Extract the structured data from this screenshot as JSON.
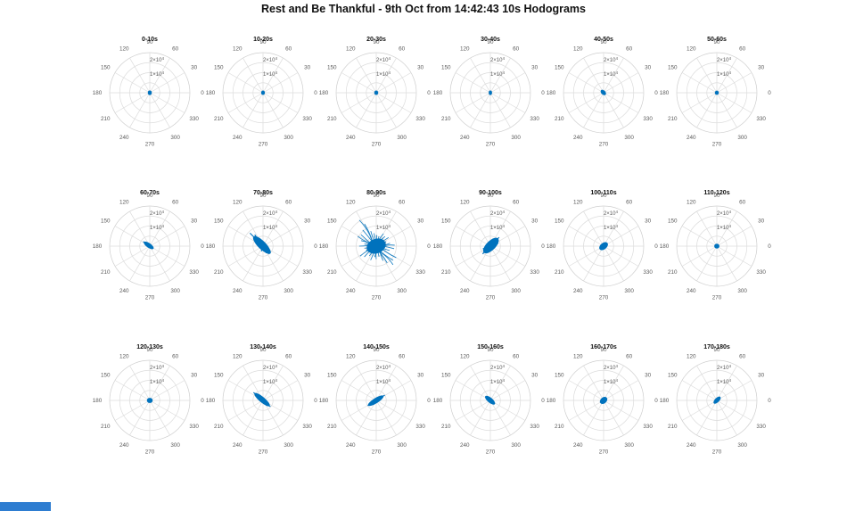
{
  "figure": {
    "title": "Rest and Be Thankful - 9th Oct from 14:42:43 10s Hodograms"
  },
  "colors": {
    "data": "#0072BD",
    "grid": "#dcdcdc",
    "grid_outer": "#cfcfcf",
    "tick": "#5a5a5a",
    "title": "#111111",
    "corner_bar": "#2e7dd1"
  },
  "chart_data": {
    "type": "line",
    "subtype": "polar-hodogram-grid",
    "title": "Rest and Be Thankful - 9th Oct from 14:42:43 10s Hodograms",
    "rows": 3,
    "cols": 6,
    "grid": true,
    "angle_ticks": [
      "0",
      "30",
      "60",
      "90",
      "120",
      "150",
      "180",
      "210",
      "240",
      "270",
      "300",
      "330"
    ],
    "r_tick_labels": [
      "1×10^4",
      "2×10^4"
    ],
    "r_max": 20000,
    "grid_rings": [
      5000,
      10000,
      15000,
      20000
    ],
    "subplots": [
      {
        "label": "0-10s",
        "blob": {
          "kind": "dot",
          "orient": 90,
          "len": 0.115,
          "wid": 0.1
        }
      },
      {
        "label": "10-20s",
        "blob": {
          "kind": "dot",
          "orient": 90,
          "len": 0.11,
          "wid": 0.095
        }
      },
      {
        "label": "20-30s",
        "blob": {
          "kind": "dot",
          "orient": 90,
          "len": 0.11,
          "wid": 0.1
        }
      },
      {
        "label": "30-40s",
        "blob": {
          "kind": "dot",
          "orient": 90,
          "len": 0.115,
          "wid": 0.085
        }
      },
      {
        "label": "40-50s",
        "blob": {
          "kind": "lobe",
          "orient": 135,
          "len": 0.16,
          "wid": 0.105,
          "offset": 0.02
        }
      },
      {
        "label": "50-60s",
        "blob": {
          "kind": "dot",
          "orient": 90,
          "len": 0.105,
          "wid": 0.1
        }
      },
      {
        "label": "60-70s",
        "blob": {
          "kind": "lobe",
          "orient": 145,
          "len": 0.29,
          "wid": 0.115,
          "offset": 0.065,
          "spikes": [
            [
              145,
              0.4
            ],
            [
              322,
              0.2
            ]
          ]
        }
      },
      {
        "label": "70-80s",
        "blob": {
          "kind": "lobe",
          "orient": 135,
          "len": 0.58,
          "wid": 0.2,
          "offset": 0.09,
          "extra": [
            {
              "orient": 315,
              "len": 0.34,
              "wid": 0.15,
              "offset": 0.18
            }
          ],
          "spikes": [
            [
              135,
              0.92
            ],
            [
              126,
              0.7
            ],
            [
              310,
              0.5
            ],
            [
              295,
              0.38
            ],
            [
              252,
              0.27
            ]
          ]
        }
      },
      {
        "label": "80-90s",
        "blob": {
          "kind": "scatter",
          "core": {
            "orient": 20,
            "len": 0.49,
            "wid": 0.36
          },
          "extra": [
            {
              "orient": 35,
              "len": 0.35,
              "wid": 0.27,
              "offset": 0.12
            },
            {
              "orient": 215,
              "len": 0.3,
              "wid": 0.2,
              "offset": 0.15
            }
          ],
          "spikes": [
            [
              123,
              1.55
            ],
            [
              118,
              1.25
            ],
            [
              130,
              1.05
            ],
            [
              143,
              0.95
            ],
            [
              152,
              1.05
            ],
            [
              160,
              0.8
            ],
            [
              170,
              0.6
            ],
            [
              180,
              0.85
            ],
            [
              190,
              0.6
            ],
            [
              203,
              0.55
            ],
            [
              212,
              0.95
            ],
            [
              222,
              0.8
            ],
            [
              235,
              0.6
            ],
            [
              248,
              0.75
            ],
            [
              262,
              0.55
            ],
            [
              270,
              0.65
            ],
            [
              285,
              0.55
            ],
            [
              295,
              0.8
            ],
            [
              303,
              1.0
            ],
            [
              312,
              1.25
            ],
            [
              320,
              1.1
            ],
            [
              330,
              1.15
            ],
            [
              342,
              0.7
            ],
            [
              352,
              0.9
            ],
            [
              3,
              0.92
            ],
            [
              12,
              0.7
            ],
            [
              25,
              0.55
            ],
            [
              35,
              0.75
            ],
            [
              48,
              0.65
            ],
            [
              60,
              0.72
            ],
            [
              75,
              0.5
            ],
            [
              88,
              0.55
            ],
            [
              100,
              0.65
            ],
            [
              110,
              0.8
            ]
          ]
        }
      },
      {
        "label": "90-100s",
        "blob": {
          "kind": "lobe",
          "orient": 45,
          "len": 0.5,
          "wid": 0.23,
          "offset": 0.04,
          "extra": [
            {
              "orient": 225,
              "len": 0.28,
              "wid": 0.17,
              "offset": 0.12
            }
          ],
          "spikes": [
            [
              45,
              0.62
            ],
            [
              70,
              0.4
            ],
            [
              20,
              0.42
            ],
            [
              225,
              0.55
            ],
            [
              250,
              0.35
            ],
            [
              200,
              0.4
            ]
          ]
        }
      },
      {
        "label": "100-110s",
        "blob": {
          "kind": "lobe",
          "orient": 40,
          "len": 0.25,
          "wid": 0.16,
          "offset": 0
        }
      },
      {
        "label": "110-120s",
        "blob": {
          "kind": "dot",
          "orient": 0,
          "len": 0.13,
          "wid": 0.12
        }
      },
      {
        "label": "120-130s",
        "blob": {
          "kind": "dot",
          "orient": 0,
          "len": 0.145,
          "wid": 0.13
        }
      },
      {
        "label": "130-140s",
        "blob": {
          "kind": "lobe",
          "orient": 140,
          "len": 0.49,
          "wid": 0.14,
          "offset": 0.06,
          "spikes": [
            [
              140,
              0.62
            ],
            [
              320,
              0.48
            ]
          ]
        }
      },
      {
        "label": "140-150s",
        "blob": {
          "kind": "lobe",
          "orient": 32,
          "len": 0.45,
          "wid": 0.13,
          "offset": -0.03,
          "spikes": [
            [
              32,
              0.5
            ],
            [
              212,
              0.5
            ]
          ]
        }
      },
      {
        "label": "150-160s",
        "blob": {
          "kind": "lobe",
          "orient": 140,
          "len": 0.31,
          "wid": 0.125,
          "offset": 0.02
        }
      },
      {
        "label": "160-170s",
        "blob": {
          "kind": "lobe",
          "orient": 40,
          "len": 0.21,
          "wid": 0.15,
          "offset": 0
        }
      },
      {
        "label": "170-180s",
        "blob": {
          "kind": "lobe",
          "orient": 45,
          "len": 0.23,
          "wid": 0.11,
          "offset": 0.02
        }
      }
    ]
  }
}
